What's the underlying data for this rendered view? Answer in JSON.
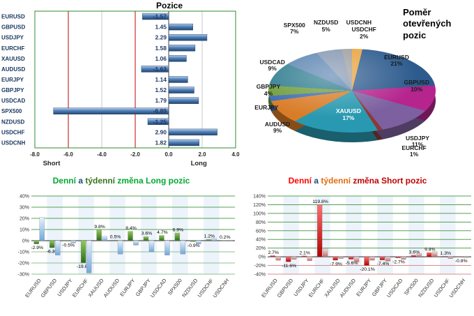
{
  "chart_data": [
    {
      "id": "pozice",
      "type": "bar",
      "orientation": "horizontal",
      "title": "Pozice",
      "categories": [
        "EURUSD",
        "GBPUSD",
        "USDJPY",
        "EURCHF",
        "XAUUSD",
        "AUDUSD",
        "EURJPY",
        "GBPJPY",
        "USDCAD",
        "SPX500",
        "NZDUSD",
        "USDCHF",
        "USDCNH"
      ],
      "values": [
        -1.57,
        1.45,
        2.29,
        1.58,
        1.06,
        -1.63,
        1.14,
        1.52,
        1.79,
        -6.89,
        -1.25,
        2.9,
        1.82
      ],
      "value_labels": [
        "-1.57",
        "1.45",
        "2.29",
        "1.58",
        "1.06",
        "-1.63",
        "1.14",
        "1.52",
        "1.79",
        "-6.89",
        "-1.25",
        "2.90",
        "1.82"
      ],
      "xlim": [
        -8,
        4
      ],
      "xticks": [
        -8,
        -6,
        -4,
        -2,
        0,
        2,
        4
      ],
      "xtick_labels": [
        "-8.0",
        "-6.0",
        "-4.0",
        "-2.0",
        "0.0",
        "2.0",
        "4.0"
      ],
      "axis_left_label": "Short",
      "axis_right_label": "Long",
      "bar_color": "#4F81BD",
      "red_gridlines": [
        -6,
        -2
      ],
      "border_color": "#2E8B2E",
      "grid": true
    },
    {
      "id": "open-positions-pie",
      "type": "pie",
      "title": "Poměr otevřených pozic",
      "slices": [
        {
          "label": "USDCHF",
          "pct": 2,
          "pct_label": "2%",
          "color": "#E8A33D",
          "label_offset": [
            9,
            -8
          ]
        },
        {
          "label": "EURUSD",
          "pct": 21,
          "pct_label": "21%",
          "color": "#2D5B8E",
          "label_offset": [
            -28,
            10
          ]
        },
        {
          "label": "GBPUSD",
          "pct": 10,
          "pct_label": "10%",
          "color": "#B5258D",
          "label_offset": [
            -35,
            -20
          ]
        },
        {
          "label": "USDJPY",
          "pct": 11,
          "pct_label": "11%",
          "color": "#7D60A0",
          "label_offset": [
            8,
            18
          ]
        },
        {
          "label": "EURCHF",
          "pct": 1,
          "pct_label": "1%",
          "color": "#8B3A3A",
          "label_offset": [
            45,
            18
          ]
        },
        {
          "label": "XAUUSD",
          "pct": 17,
          "pct_label": "17%",
          "color": "#2899B0",
          "label_inside": true,
          "label_offset": [
            8,
            -2
          ]
        },
        {
          "label": "AUDUSD",
          "pct": 9,
          "pct_label": "9%",
          "color": "#D97C28",
          "label_offset": [
            5,
            16
          ]
        },
        {
          "label": "EURJPY",
          "pct": 2,
          "pct_label": "",
          "color": "#3B6CB4",
          "label_offset": [
            5,
            11
          ]
        },
        {
          "label": "GBPJPY",
          "pct": 4,
          "pct_label": "4%",
          "color": "#6F9C3C",
          "label_offset": [
            10,
            0
          ]
        },
        {
          "label": "USDCAD",
          "pct": 9,
          "pct_label": "9%",
          "color": "#2F7C8F",
          "label_offset": [
            5,
            -6
          ]
        },
        {
          "label": "SPX500",
          "pct": 7,
          "pct_label": "7%",
          "color": "#5B84B1",
          "label_offset": [
            -3,
            -30
          ]
        },
        {
          "label": "NZDUSD",
          "pct": 5,
          "pct_label": "5%",
          "color": "#8497B0",
          "label_offset": [
            -1,
            -21
          ]
        },
        {
          "label": "USDCNH",
          "pct": 2,
          "pct_label": "",
          "color": "#9E9E9E",
          "label_offset": [
            18,
            -23
          ]
        }
      ]
    },
    {
      "id": "long-change",
      "type": "bar",
      "title_parts": [
        {
          "text": "Denní",
          "color": "#00A933"
        },
        {
          "text": " a ",
          "color": "#1F497D"
        },
        {
          "text": "týdenní",
          "color": "#38761D"
        },
        {
          "text": " změna Long pozic",
          "color": "#00A933"
        }
      ],
      "categories": [
        "EURUSD",
        "GBPUSD",
        "USDJPY",
        "EURCHF",
        "XAUUSD",
        "AUDUSD",
        "EURJPY",
        "GBPJPY",
        "USDCAD",
        "SPX500",
        "NZDUSD",
        "USDCHF",
        "USDCNH"
      ],
      "ylim": [
        -30,
        40
      ],
      "ytick_step": 10,
      "grid_pos_color": "#55A055",
      "grid_neg_color": "#8FBF8F",
      "series": [
        {
          "name": "Denní změna",
          "color_light": "#8FCB5A",
          "color_dark": "#2F6B1A",
          "values": [
            -2.9,
            -6.3,
            -0.5,
            -19.8,
            9.8,
            0.5,
            8.4,
            3.6,
            4.7,
            6.9,
            -0.9,
            1.2,
            0.2
          ],
          "labels": [
            "-2.9%",
            "-6.3%",
            "-0.5%",
            "-19.8%",
            "9.8%",
            "0.5%",
            "8.4%",
            "3.6%",
            "4.7%",
            "6.9%",
            "-0.9%",
            "1.2%",
            "0.2%"
          ]
        },
        {
          "name": "Týdenní změna",
          "color_light": "#E9F2FB",
          "color_dark": "#6FA8DC",
          "values": [
            21,
            -13,
            -2,
            -29,
            4,
            -12,
            -4,
            -10,
            -13,
            -12,
            -3,
            2,
            0.4
          ],
          "labels": []
        }
      ]
    },
    {
      "id": "short-change",
      "type": "bar",
      "title_parts": [
        {
          "text": "Denní",
          "color": "#FF0000"
        },
        {
          "text": " a ",
          "color": "#1F497D"
        },
        {
          "text": "týdenní",
          "color": "#E36C0A"
        },
        {
          "text": " změna Short pozic",
          "color": "#C00000"
        }
      ],
      "categories": [
        "EURUSD",
        "GBPUSD",
        "USDJPY",
        "EURCHF",
        "XAUUSD",
        "AUDUSD",
        "EURJPY",
        "GBPJPY",
        "USDCAD",
        "SPX500",
        "NZDUSD",
        "USDCHF",
        "USDCNH"
      ],
      "ylim": [
        -40,
        140
      ],
      "ytick_step": 20,
      "grid_pos_color": "#55A055",
      "grid_neg_color": "#D98C8C",
      "series": [
        {
          "name": "Denní změna",
          "color_light": "#FF7070",
          "color_dark": "#B00000",
          "values": [
            2.7,
            -11.6,
            2.1,
            119.8,
            -7.9,
            -5.6,
            -20.1,
            -7.4,
            -2.7,
            3.6,
            9.8,
            1.3,
            -0.8
          ],
          "labels": [
            "2.7%",
            "-11.6%",
            "2.1%",
            "119.8%",
            "-7.9%",
            "-5.6%",
            "-20.1%",
            "-7.4%",
            "-2.7%",
            "3.6%",
            "9.8%",
            "1.3%",
            "-0.8%"
          ]
        },
        {
          "name": "Týdenní změna",
          "color_light": "#F5DADA",
          "color_dark": "#C46A6A",
          "values": [
            -8,
            -6,
            -9,
            18,
            -4,
            -12,
            -8,
            -10,
            -6,
            8,
            12,
            -4,
            -2
          ],
          "labels": []
        }
      ]
    }
  ]
}
